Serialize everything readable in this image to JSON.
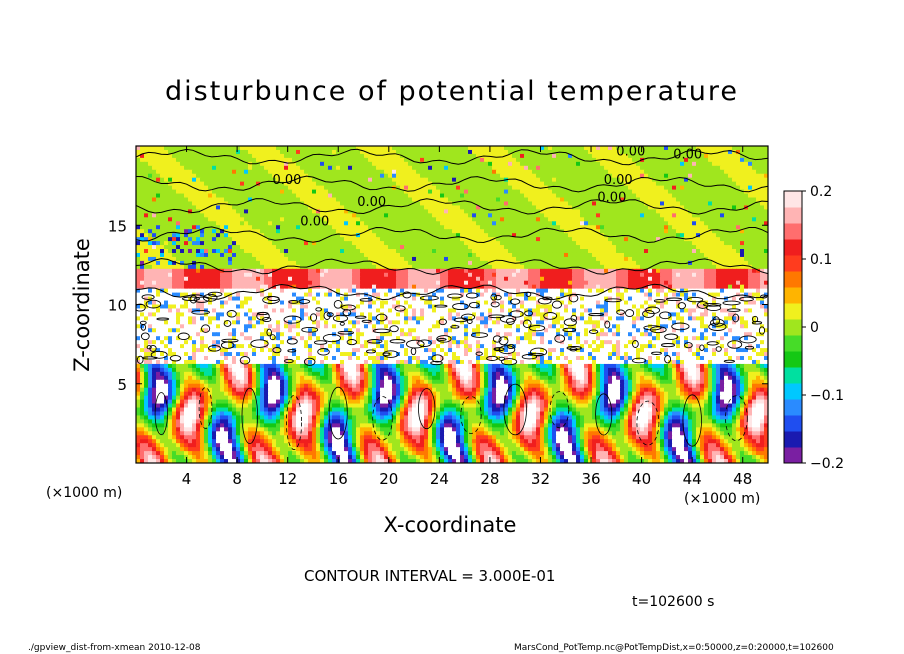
{
  "chart_data": {
    "type": "heatmap",
    "title": "disturbunce of potential temperature",
    "xlabel": "X-coordinate",
    "ylabel": "Z-coordinate",
    "x_unit": "(×1000 m)",
    "x_ticks": [
      4,
      8,
      12,
      16,
      20,
      24,
      28,
      32,
      36,
      40,
      44,
      48
    ],
    "y_ticks": [
      5,
      10,
      15
    ],
    "xlim": [
      0,
      50
    ],
    "ylim": [
      0,
      20
    ],
    "colorbar": {
      "min": -0.2,
      "max": 0.2,
      "tick_labels": [
        "0.2",
        "0.1",
        "0",
        "−0.1",
        "−0.2"
      ],
      "tick_values": [
        0.2,
        0.1,
        0,
        -0.1,
        -0.2
      ],
      "colors": [
        "#7a1fa2",
        "#1a1ab0",
        "#1f4ef0",
        "#2a8bff",
        "#00c8ff",
        "#00e0a0",
        "#14c814",
        "#46dc28",
        "#a0e61e",
        "#f0f01e",
        "#ffb400",
        "#ff7800",
        "#ff3c1e",
        "#f01e1e",
        "#ff6e6e",
        "#ffb4b4",
        "#ffe6e6"
      ]
    },
    "contour_labels": [
      "0.00",
      "0.00",
      "0.00",
      "0.00",
      "0.00",
      "0.00",
      "0.00"
    ],
    "regions": [
      {
        "z_range": [
          16,
          20
        ],
        "value": 0.0,
        "description_color": "green"
      },
      {
        "z_range": [
          11,
          12.2
        ],
        "value": 0.15,
        "description_color": "red"
      },
      {
        "z_range": [
          6,
          10.5
        ],
        "value": 0.0,
        "description_color": "white/contoured"
      },
      {
        "z_range": [
          0,
          6
        ],
        "value": "oscillating ±0.2",
        "description_color": "mixed"
      }
    ]
  },
  "contour_interval": "CONTOUR INTERVAL = 3.000E-01",
  "time_label": "t=102600 s",
  "footer_left": "./gpview_dist-from-xmean   2010-12-08",
  "footer_right": "MarsCond_PotTemp.nc@PotTempDist,x=0:50000,z=0:20000,t=102600"
}
